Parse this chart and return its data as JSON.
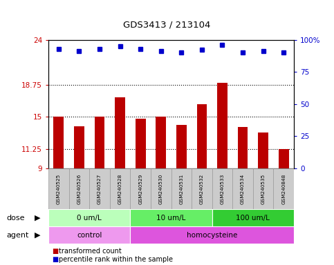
{
  "title": "GDS3413 / 213104",
  "samples": [
    "GSM240525",
    "GSM240526",
    "GSM240527",
    "GSM240528",
    "GSM240529",
    "GSM240530",
    "GSM240531",
    "GSM240532",
    "GSM240533",
    "GSM240534",
    "GSM240535",
    "GSM240848"
  ],
  "bar_values": [
    15.0,
    13.9,
    15.0,
    17.3,
    14.8,
    15.0,
    14.1,
    16.5,
    19.0,
    13.8,
    13.2,
    11.25
  ],
  "percentile_values": [
    93,
    91,
    93,
    95,
    93,
    91,
    90,
    92,
    96,
    90,
    91,
    90
  ],
  "ylim_left": [
    9,
    24
  ],
  "ylim_right": [
    0,
    100
  ],
  "yticks_left": [
    9,
    11.25,
    15,
    18.75,
    24
  ],
  "ytick_labels_left": [
    "9",
    "11.25",
    "15",
    "18.75",
    "24"
  ],
  "yticks_right": [
    0,
    25,
    50,
    75,
    100
  ],
  "ytick_labels_right": [
    "0",
    "25",
    "50",
    "75",
    "100%"
  ],
  "hlines": [
    11.25,
    15,
    18.75
  ],
  "bar_color": "#bb0000",
  "dot_color": "#0000cc",
  "dose_groups": [
    {
      "label": "0 um/L",
      "start": 0,
      "end": 4,
      "color": "#bbffbb"
    },
    {
      "label": "10 um/L",
      "start": 4,
      "end": 8,
      "color": "#66ee66"
    },
    {
      "label": "100 um/L",
      "start": 8,
      "end": 12,
      "color": "#33cc33"
    }
  ],
  "agent_groups": [
    {
      "label": "control",
      "start": 0,
      "end": 4,
      "color": "#ee99ee"
    },
    {
      "label": "homocysteine",
      "start": 4,
      "end": 12,
      "color": "#dd55dd"
    }
  ],
  "dose_label": "dose",
  "agent_label": "agent",
  "legend_bar_label": "transformed count",
  "legend_dot_label": "percentile rank within the sample",
  "bg_color": "#ffffff",
  "tick_label_color_left": "#cc0000",
  "tick_label_color_right": "#0000cc",
  "bar_bottom": 9,
  "sample_box_color": "#cccccc",
  "sample_box_edge": "#999999"
}
